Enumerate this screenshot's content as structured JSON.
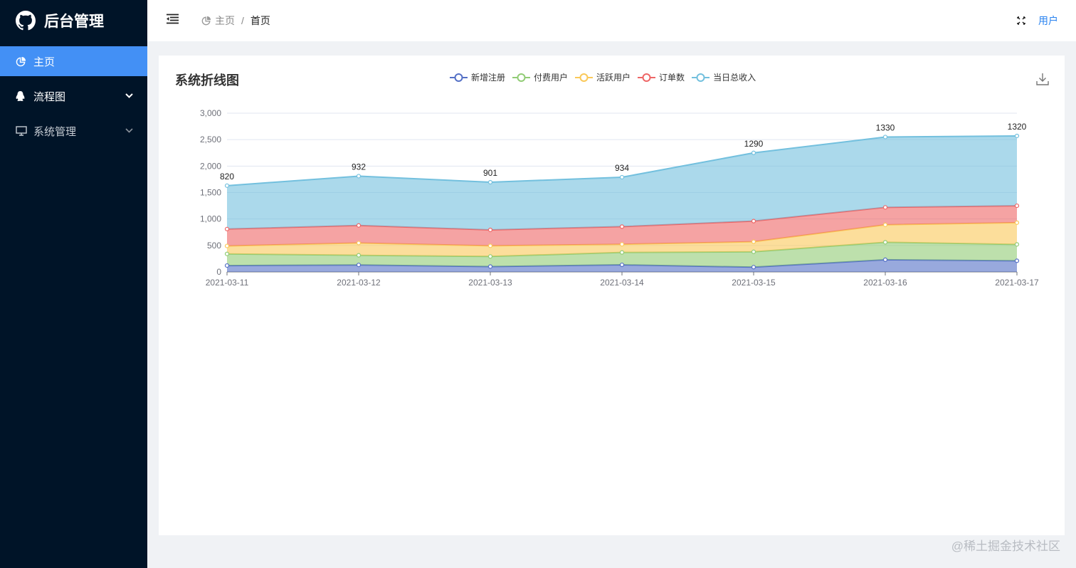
{
  "app": {
    "title": "后台管理"
  },
  "sidebar": {
    "items": [
      {
        "label": "主页",
        "icon": "pie-chart-icon"
      },
      {
        "label": "流程图",
        "icon": "qq-icon"
      },
      {
        "label": "系统管理",
        "icon": "monitor-icon"
      }
    ]
  },
  "header": {
    "breadcrumb": [
      "主页",
      "首页"
    ],
    "user": "用户"
  },
  "card": {
    "title": "系统折线图"
  },
  "watermark": "@稀土掘金技术社区",
  "chart_data": {
    "type": "area",
    "stacked": true,
    "title": "系统折线图",
    "categories": [
      "2021-03-11",
      "2021-03-12",
      "2021-03-13",
      "2021-03-14",
      "2021-03-15",
      "2021-03-16",
      "2021-03-17"
    ],
    "ylim": [
      0,
      3000
    ],
    "yticks": [
      0,
      500,
      1000,
      1500,
      2000,
      2500,
      3000
    ],
    "ytick_labels": [
      "0",
      "500",
      "1,000",
      "1,500",
      "2,000",
      "2,500",
      "3,000"
    ],
    "legend_position": "top-center",
    "series": [
      {
        "name": "新增注册",
        "color": "#5470c6",
        "values": [
          120,
          132,
          101,
          134,
          90,
          230,
          210
        ]
      },
      {
        "name": "付费用户",
        "color": "#91cc75",
        "values": [
          220,
          182,
          191,
          234,
          290,
          330,
          310
        ]
      },
      {
        "name": "活跃用户",
        "color": "#fac858",
        "values": [
          150,
          232,
          201,
          154,
          190,
          330,
          410
        ]
      },
      {
        "name": "订单数",
        "color": "#ee6666",
        "values": [
          320,
          332,
          301,
          334,
          390,
          330,
          320
        ]
      },
      {
        "name": "当日总收入",
        "color": "#73c0de",
        "values": [
          820,
          932,
          901,
          934,
          1290,
          1330,
          1320
        ],
        "show_labels": true
      }
    ]
  }
}
